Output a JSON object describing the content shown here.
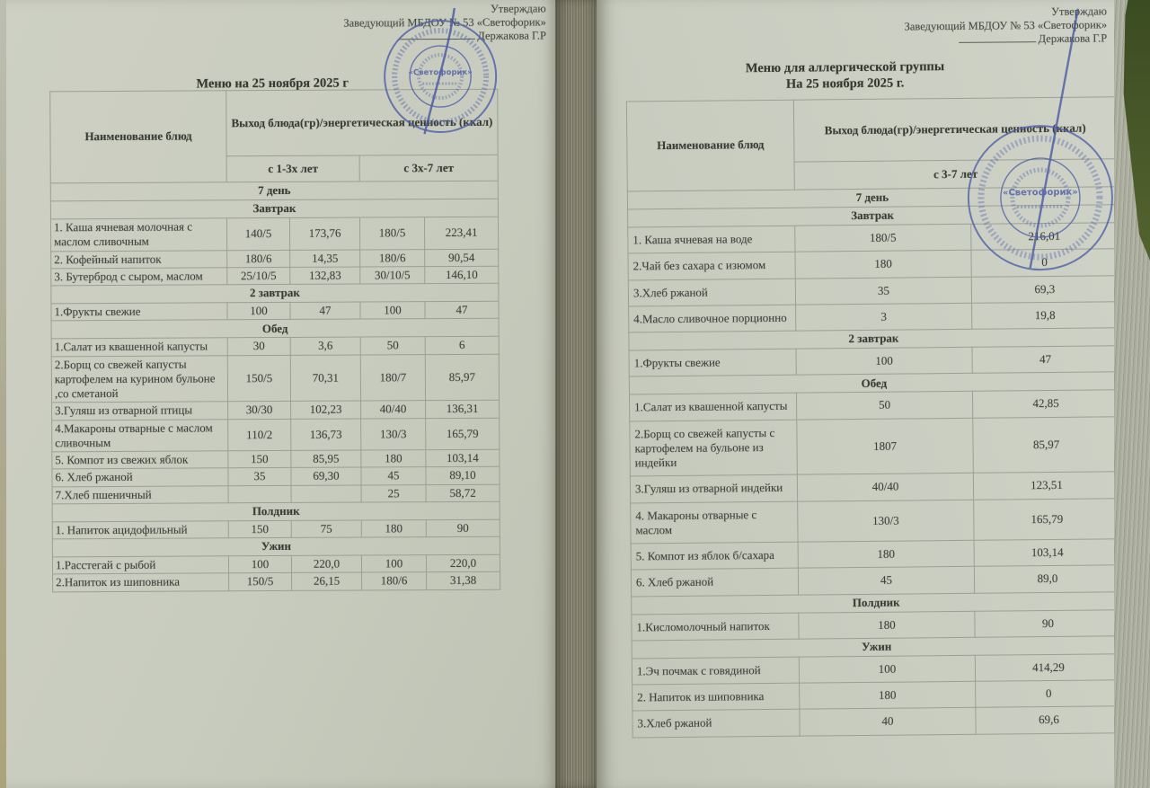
{
  "photo": {
    "paper_color": "#c9cdc0",
    "stamp_color": "#4f5fae",
    "backdrop_color": "#46542a"
  },
  "left_page": {
    "approval": [
      "Утверждаю",
      "Заведующий МБДОУ № 53 «Светофорик»",
      "Держакова Г.Р"
    ],
    "title": "Меню на 25 ноября 2025 г",
    "stamp": {
      "label": "«Светофорик»"
    },
    "table": {
      "name_header": "Наименование блюд",
      "output_header": "Выход блюда(гр)/энергетическая ценность (ккал)",
      "age_headers": [
        "с 1-3х лет",
        "с 3х-7 лет"
      ],
      "day_label": "7  день",
      "sections": [
        {
          "label": "Завтрак",
          "rows": [
            {
              "name": "1. Каша ячневая молочная с маслом сливочным",
              "values": [
                "140/5",
                "173,76",
                "180/5",
                "223,41"
              ]
            },
            {
              "name": "2. Кофейный напиток",
              "values": [
                "180/6",
                "14,35",
                "180/6",
                "90,54"
              ]
            },
            {
              "name": "3. Бутерброд с сыром, маслом",
              "values": [
                "25/10/5",
                "132,83",
                "30/10/5",
                "146,10"
              ]
            }
          ]
        },
        {
          "label": "2 завтрак",
          "rows": [
            {
              "name": "1.Фрукты свежие",
              "values": [
                "100",
                "47",
                "100",
                "47"
              ]
            }
          ]
        },
        {
          "label": "Обед",
          "rows": [
            {
              "name": "1.Салат из квашенной капусты",
              "values": [
                "30",
                "3,6",
                "50",
                "6"
              ]
            },
            {
              "name": "2.Борщ со свежей капусты картофелем на курином бульоне ,со сметаной",
              "values": [
                "150/5",
                "70,31",
                "180/7",
                "85,97"
              ]
            },
            {
              "name": "3.Гуляш из отварной птицы",
              "values": [
                "30/30",
                "102,23",
                "40/40",
                "136,31"
              ]
            },
            {
              "name": "4.Макароны отварные  с маслом сливочным",
              "values": [
                "110/2",
                "136,73",
                "130/3",
                "165,79"
              ]
            },
            {
              "name": "5. Компот из свежих яблок",
              "values": [
                "150",
                "85,95",
                "180",
                "103,14"
              ]
            },
            {
              "name": "6. Хлеб ржаной",
              "values": [
                "35",
                "69,30",
                "45",
                "89,10"
              ]
            },
            {
              "name": "7.Хлеб пшеничный",
              "values": [
                "",
                "",
                "25",
                "58,72"
              ]
            }
          ]
        },
        {
          "label": "Полдник",
          "rows": [
            {
              "name": "1. Напиток ацидофильный",
              "values": [
                "150",
                "75",
                "180",
                "90"
              ]
            }
          ]
        },
        {
          "label": "Ужин",
          "rows": [
            {
              "name": "1.Расстегай с рыбой",
              "values": [
                "100",
                "220,0",
                "100",
                "220,0"
              ]
            },
            {
              "name": "2.Напиток из шиповника",
              "values": [
                "150/5",
                "26,15",
                "180/6",
                "31,38"
              ]
            }
          ]
        }
      ]
    }
  },
  "right_page": {
    "approval": [
      "Утверждаю",
      "Заведующий МБДОУ № 53 «Светофорик»",
      "Держакова Г.Р"
    ],
    "title_line1": "Меню для аллергической группы",
    "title_line2": "На 25 ноября 2025 г.",
    "stamp": {
      "label": "«Светофорик»"
    },
    "table": {
      "name_header": "Наименование блюд",
      "output_header": "Выход блюда(гр)/энергетическая ценность (ккал)",
      "age_headers": [
        "с 3-7 лет"
      ],
      "day_label": "7  день",
      "sections": [
        {
          "label": "Завтрак",
          "rows": [
            {
              "name": "1. Каша ячневая на воде",
              "values": [
                "180/5",
                "216,01"
              ]
            },
            {
              "name": "2.Чай без сахара с изюмом",
              "values": [
                "180",
                "0"
              ]
            },
            {
              "name": "3.Хлеб ржаной",
              "values": [
                "35",
                "69,3"
              ]
            },
            {
              "name": "4.Масло сливочное порционно",
              "values": [
                "3",
                "19,8"
              ]
            }
          ]
        },
        {
          "label": "2  завтрак",
          "rows": [
            {
              "name": "1.Фрукты свежие",
              "values": [
                "100",
                "47"
              ]
            }
          ]
        },
        {
          "label": "Обед",
          "rows": [
            {
              "name": "1.Салат из квашенной капусты",
              "values": [
                "50",
                "42,85"
              ]
            },
            {
              "name": "2.Борщ со свежей капусты с картофелем на бульоне из индейки",
              "values": [
                "1807",
                "85,97"
              ]
            },
            {
              "name": "3.Гуляш из отварной индейки",
              "values": [
                "40/40",
                "123,51"
              ]
            },
            {
              "name": "4. Макароны отварные с маслом",
              "values": [
                "130/3",
                "165,79"
              ]
            },
            {
              "name": "5. Компот из яблок б/сахара",
              "values": [
                "180",
                "103,14"
              ]
            },
            {
              "name": "6. Хлеб ржаной",
              "values": [
                "45",
                "89,0"
              ]
            }
          ]
        },
        {
          "label": "Полдник",
          "rows": [
            {
              "name": "1.Кисломолочный напиток",
              "values": [
                "180",
                "90"
              ]
            }
          ]
        },
        {
          "label": "Ужин",
          "rows": [
            {
              "name": "1.Эч почмак с говядиной",
              "values": [
                "100",
                "414,29"
              ]
            },
            {
              "name": "2. Напиток из шиповника",
              "values": [
                "180",
                "0"
              ]
            },
            {
              "name": "3.Хлеб ржаной",
              "values": [
                "40",
                "69,6"
              ]
            }
          ]
        }
      ]
    }
  }
}
